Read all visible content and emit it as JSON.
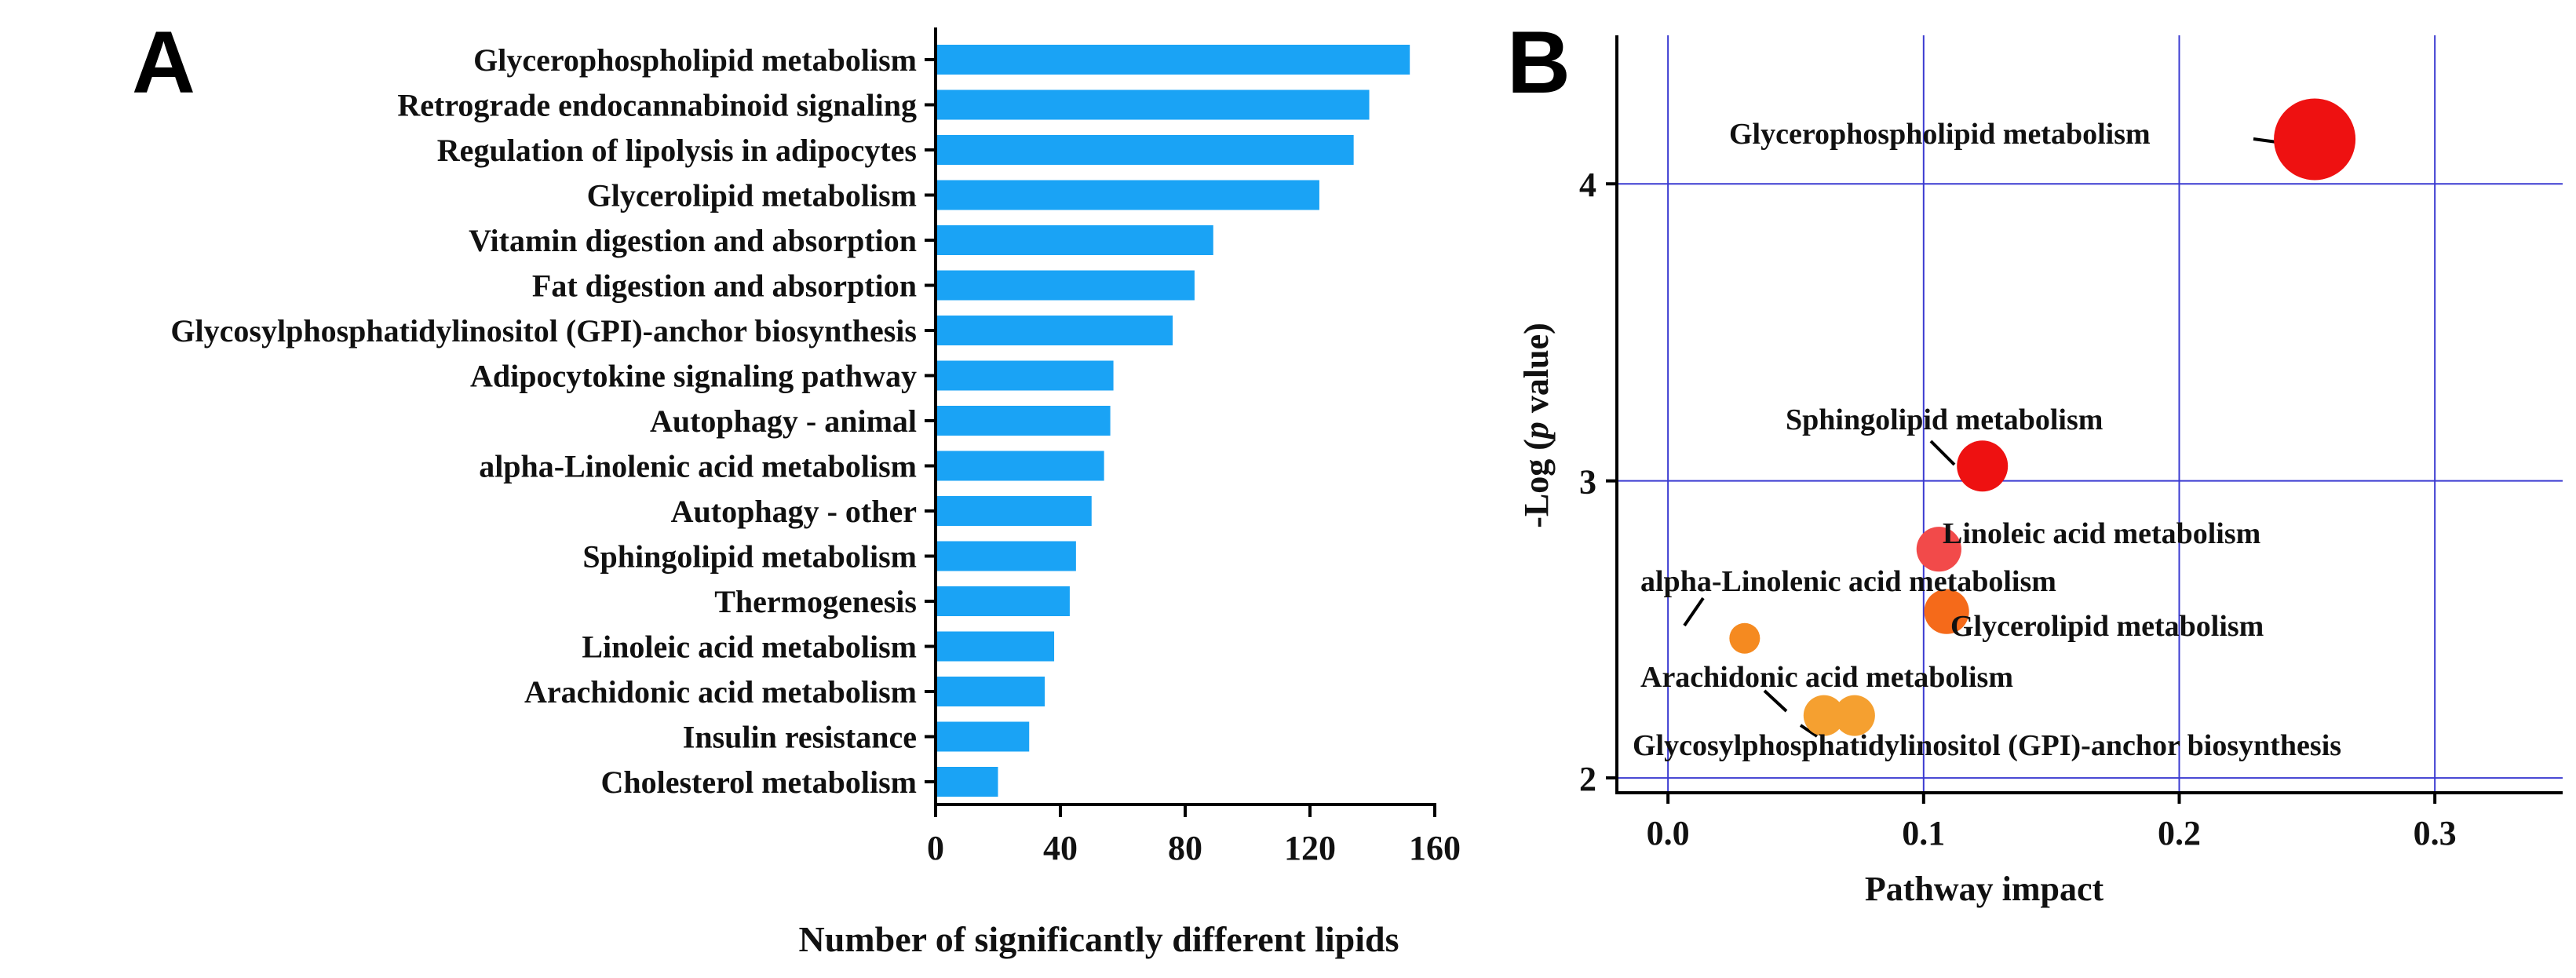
{
  "panels": {
    "a": {
      "letter": "A"
    },
    "b": {
      "letter": "B"
    }
  },
  "chart_data": [
    {
      "type": "bar",
      "orientation": "horizontal",
      "categories": [
        "Glycerophospholipid metabolism",
        "Retrograde endocannabinoid signaling",
        "Regulation of lipolysis in adipocytes",
        "Glycerolipid metabolism",
        "Vitamin digestion and absorption",
        "Fat digestion and absorption",
        "Glycosylphosphatidylinositol (GPI)-anchor biosynthesis",
        "Adipocytokine signaling pathway",
        "Autophagy - animal",
        "alpha-Linolenic acid metabolism",
        "Autophagy - other",
        "Sphingolipid metabolism",
        "Thermogenesis",
        "Linoleic acid metabolism",
        "Arachidonic acid metabolism",
        "Insulin resistance",
        "Cholesterol metabolism"
      ],
      "values": [
        152,
        139,
        134,
        123,
        89,
        83,
        76,
        57,
        56,
        54,
        50,
        45,
        43,
        38,
        35,
        30,
        20
      ],
      "xlabel": "Number of significantly different lipids",
      "ylabel": "",
      "xlim": [
        0,
        160
      ],
      "xticks": [
        0,
        40,
        80,
        120,
        160
      ],
      "xtick_labels": [
        "0",
        "40",
        "80",
        "120",
        "160"
      ],
      "bar_color": "#1aa3f5",
      "grid": false
    },
    {
      "type": "scatter",
      "xlabel": "Pathway impact",
      "ylabel_prefix": "-Log (",
      "ylabel_italic": "p",
      "ylabel_suffix": " value)",
      "xlim": [
        -0.02,
        0.35
      ],
      "ylim": [
        1.95,
        4.5
      ],
      "xticks": [
        0.0,
        0.1,
        0.2,
        0.3
      ],
      "xtick_labels": [
        "0.0",
        "0.1",
        "0.2",
        "0.3"
      ],
      "yticks": [
        2,
        3,
        4
      ],
      "ytick_labels": [
        "2",
        "3",
        "4"
      ],
      "grid": true,
      "grid_color": "#3b3bd1",
      "points": [
        {
          "label": "Glycerophospholipid metabolism",
          "x": 0.253,
          "y": 4.15,
          "color": "#ee1111",
          "size": 4.0
        },
        {
          "label": "Sphingolipid metabolism",
          "x": 0.123,
          "y": 3.05,
          "color": "#ee1111",
          "size": 2.5
        },
        {
          "label": "Linoleic acid metabolism",
          "x": 0.106,
          "y": 2.77,
          "color": "#f24a4a",
          "size": 2.2
        },
        {
          "label": "Glycerolipid metabolism",
          "x": 0.109,
          "y": 2.56,
          "color": "#f56a1a",
          "size": 2.2
        },
        {
          "label": "alpha-Linolenic acid metabolism",
          "x": 0.03,
          "y": 2.47,
          "color": "#f58a20",
          "size": 1.5
        },
        {
          "label": "Arachidonic acid metabolism",
          "x": 0.061,
          "y": 2.21,
          "color": "#f5a030",
          "size": 2.0
        },
        {
          "label": "Glycosylphosphatidylinositol (GPI)-anchor biosynthesis",
          "x": 0.073,
          "y": 2.21,
          "color": "#f5a030",
          "size": 2.0
        }
      ]
    }
  ]
}
